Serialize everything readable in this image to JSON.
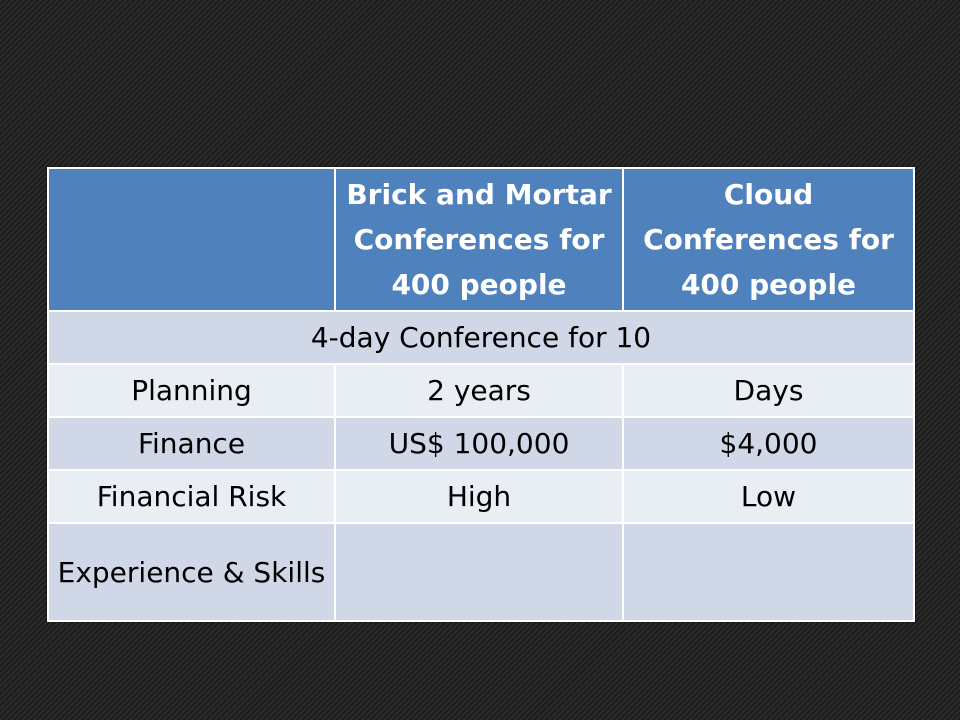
{
  "table": {
    "headers": [
      "",
      "Brick and Mortar Conferences for 400 people",
      "Cloud Conferences for 400 people"
    ],
    "section_title": "4-day Conference for 10",
    "rows": [
      {
        "label": "Planning",
        "brick": "2 years",
        "cloud": "Days"
      },
      {
        "label": "Finance",
        "brick": "US$ 100,000",
        "cloud": "$4,000"
      },
      {
        "label": "Financial Risk",
        "brick": "High",
        "cloud": "Low"
      },
      {
        "label": "Experience & Skills",
        "brick": "",
        "cloud": ""
      }
    ]
  },
  "colors": {
    "header_bg": "#4f81bd",
    "row_dark": "#d0d8e8",
    "row_light": "#e9edf4",
    "background": "#242424"
  }
}
